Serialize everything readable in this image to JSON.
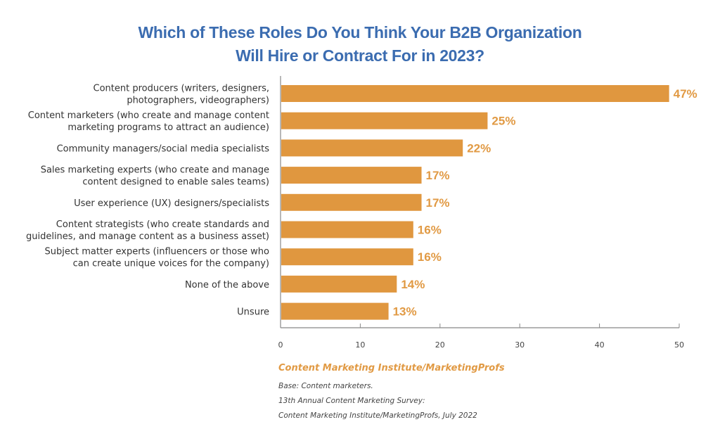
{
  "chart_data": {
    "type": "bar",
    "orientation": "horizontal",
    "title": [
      "Which of These Roles Do You Think Your B2B Organization",
      "Will Hire or Contract For in 2023?"
    ],
    "categories": [
      [
        "Content producers  (writers, designers,",
        "photographers, videographers)"
      ],
      [
        "Content marketers  (who create and manage content",
        "marketing programs to attract an audience)"
      ],
      [
        "Community managers/social media specialists"
      ],
      [
        "Sales marketing experts (who create and manage",
        "content designed to enable sales teams)"
      ],
      [
        "User experience (UX) designers/specialists"
      ],
      [
        "Content strategists (who create standards and",
        "guidelines, and manage content as a business asset)"
      ],
      [
        "Subject matter experts (influencers or those who",
        "can create unique voices for the company)"
      ],
      [
        "None of the above"
      ],
      [
        "Unsure"
      ]
    ],
    "values": [
      47,
      25,
      22,
      17,
      17,
      16,
      16,
      14,
      13
    ],
    "value_labels": [
      "47%",
      "25%",
      "22%",
      "17%",
      "17%",
      "16%",
      "16%",
      "14%",
      "13%"
    ],
    "xlabel": "",
    "ylabel": "",
    "xlim": [
      0,
      50
    ],
    "xticks": [
      0,
      10,
      20,
      30,
      40,
      50
    ],
    "grid": false,
    "bar_color": "#e0973f",
    "label_color": "#e19a44"
  },
  "colors": {
    "title": "#3b6cb0",
    "source": "#e19a44"
  },
  "footer": {
    "source": "Content Marketing Institute/MarketingProfs",
    "base": "Base: Content marketers.",
    "survey_line1": "13th Annual Content Marketing Survey:",
    "survey_line2": "Content Marketing Institute/MarketingProfs, July 2022"
  }
}
